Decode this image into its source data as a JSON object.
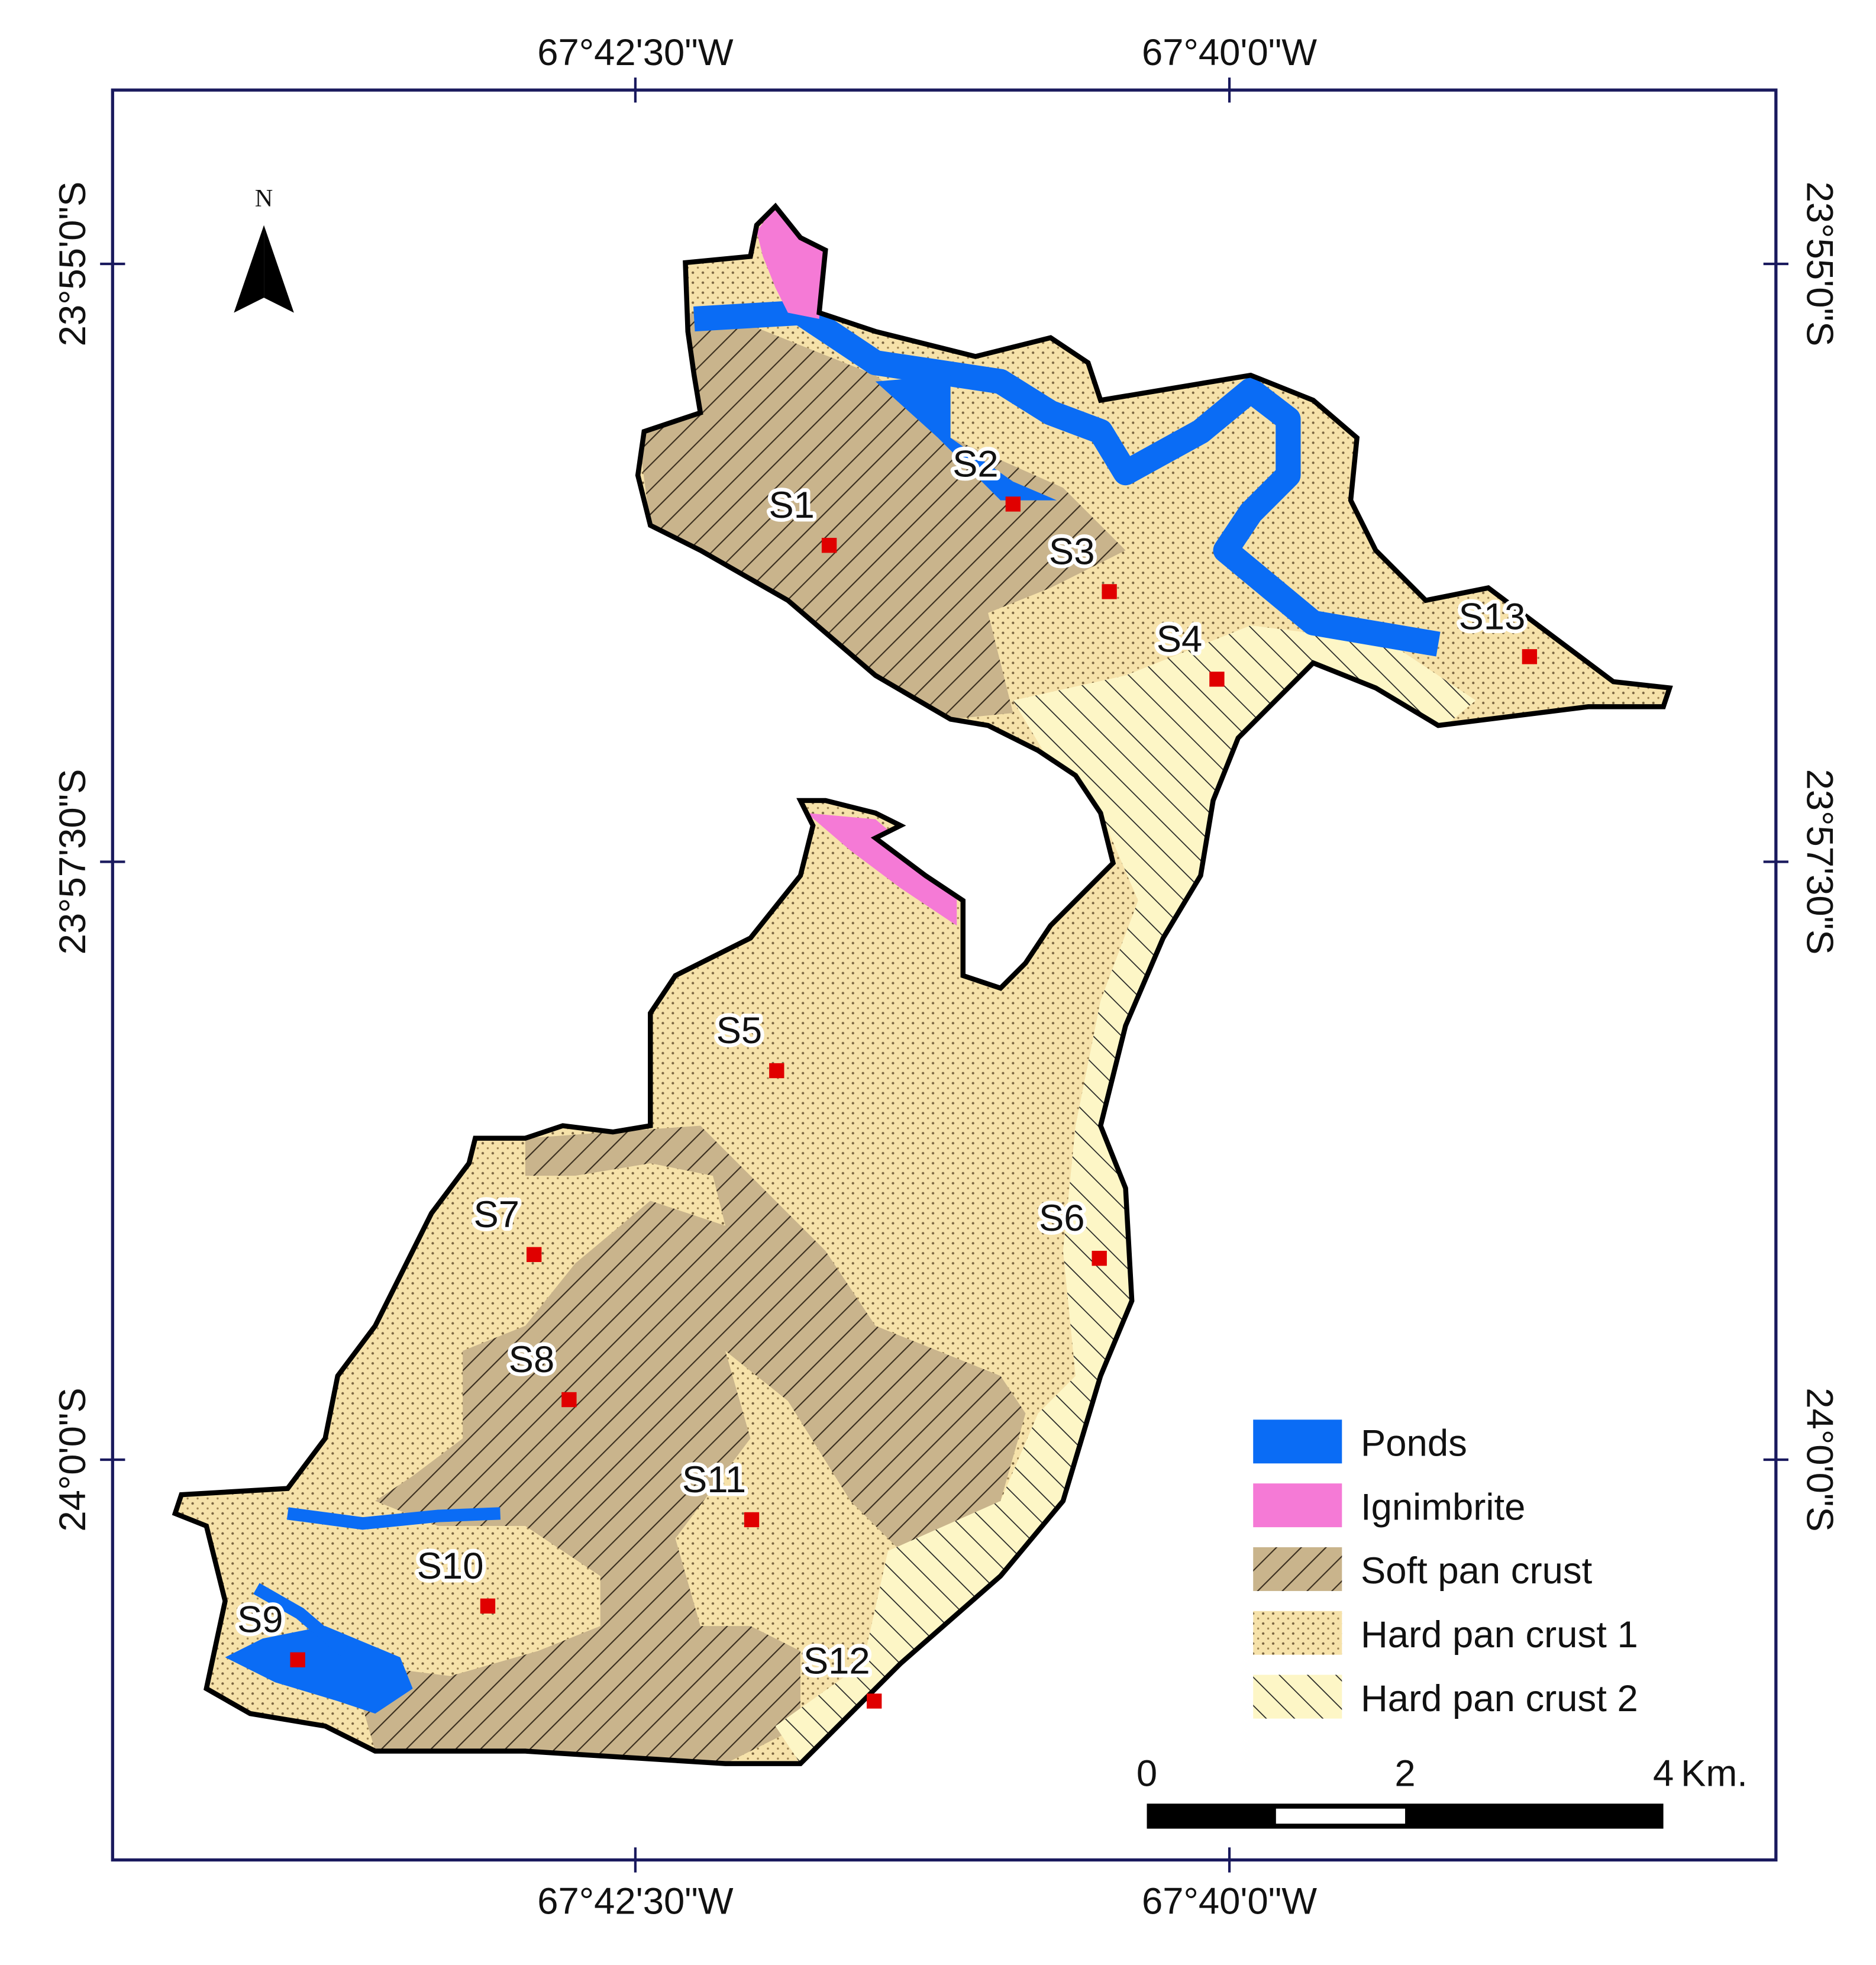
{
  "north_arrow": "N",
  "graticule": {
    "top": [
      "67°42'30\"W",
      "67°40'0\"W"
    ],
    "bottom": [
      "67°42'30\"W",
      "67°40'0\"W"
    ],
    "left": [
      "23°55'0\"S",
      "23°57'30\"S",
      "24°0'0\"S"
    ],
    "right": [
      "23°55'0\"S",
      "23°57'30\"S",
      "24°0'0\"S"
    ]
  },
  "sites": [
    "S1",
    "S2",
    "S3",
    "S4",
    "S13",
    "S5",
    "S6",
    "S7",
    "S8",
    "S10",
    "S11",
    "S9",
    "S12"
  ],
  "legend": [
    {
      "label": "Ponds",
      "color": "#0a6cf5"
    },
    {
      "label": "Ignimbrite",
      "color": "#f57ad6"
    },
    {
      "label": "Soft pan crust",
      "color": "#c9b48c"
    },
    {
      "label": "Hard pan crust 1",
      "color": "#f6e2aa"
    },
    {
      "label": "Hard pan crust 2",
      "color": "#fdf6c6"
    }
  ],
  "scale_bar": {
    "ticks": [
      0,
      2,
      4
    ],
    "unit": "Km."
  }
}
